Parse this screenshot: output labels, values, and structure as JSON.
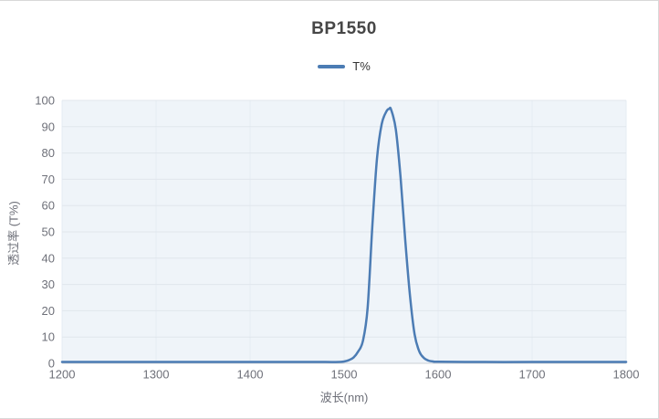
{
  "panel": {
    "title": "BP1550"
  },
  "chart_data": {
    "type": "line",
    "title": "BP1550",
    "xlabel": "波长(nm)",
    "ylabel": "透过率 (T%)",
    "xlim": [
      1200,
      1800
    ],
    "ylim": [
      0,
      100
    ],
    "xticks": [
      1200,
      1300,
      1400,
      1500,
      1600,
      1700,
      1800
    ],
    "yticks": [
      0,
      10,
      20,
      30,
      40,
      50,
      60,
      70,
      80,
      90,
      100
    ],
    "grid": true,
    "legend_position": "top",
    "x": [
      1200,
      1250,
      1300,
      1350,
      1400,
      1450,
      1480,
      1495,
      1500,
      1505,
      1510,
      1515,
      1520,
      1525,
      1530,
      1535,
      1540,
      1545,
      1548,
      1550,
      1555,
      1560,
      1565,
      1570,
      1575,
      1580,
      1585,
      1590,
      1595,
      1600,
      1650,
      1700,
      1750,
      1800
    ],
    "series": [
      {
        "name": "T%",
        "values": [
          0.5,
          0.5,
          0.5,
          0.5,
          0.5,
          0.5,
          0.5,
          0.5,
          0.7,
          1.2,
          2.2,
          4.5,
          8.5,
          21,
          52,
          78,
          91,
          95.8,
          96.8,
          96.5,
          89,
          71,
          47,
          26,
          11,
          4.5,
          2,
          1,
          0.7,
          0.6,
          0.5,
          0.5,
          0.5,
          0.5
        ]
      }
    ],
    "annotations": {
      "peak_wavelength_nm": 1548,
      "peak_transmittance_pct": 96.8,
      "fwhm_nm": 35
    },
    "colors": {
      "line": "#4c7cb4",
      "plot_bg": "#eff4f9",
      "grid_horizontal": "#e0e6ec",
      "grid_vertical": "#e6edf4",
      "axis_line": "#ccd1d6",
      "tick_text": "#6e7079",
      "title_text": "#464646",
      "legend_text": "#333333",
      "panel_border": "#d8d8d8"
    }
  }
}
